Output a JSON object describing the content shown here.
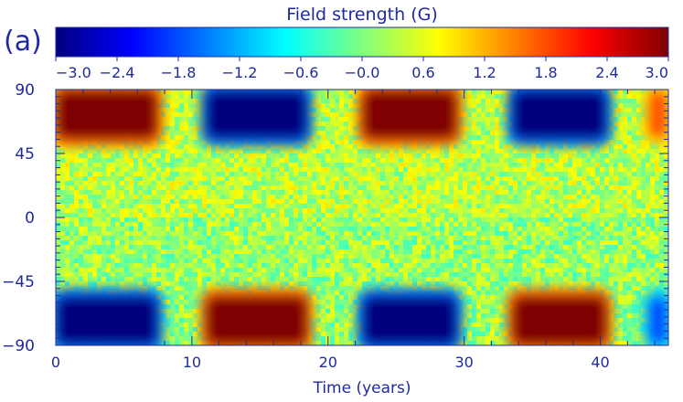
{
  "panel_label": "(a)",
  "colorbar": {
    "title": "Field strength (G)",
    "min": -3.0,
    "max": 3.0,
    "ticks": [
      -3.0,
      -2.4,
      -1.8,
      -1.2,
      -0.6,
      0.0,
      0.6,
      1.2,
      1.8,
      2.4,
      3.0
    ],
    "tick_labels": [
      "−3.0",
      "−2.4",
      "−1.8",
      "−1.2",
      "−0.6",
      "−0.0",
      "0.6",
      "1.2",
      "1.8",
      "2.4",
      "3.0"
    ],
    "colormap": [
      "#00007f",
      "#0000ff",
      "#007fff",
      "#00ffff",
      "#7fff7f",
      "#ffff00",
      "#ff7f00",
      "#ff0000",
      "#7f0000"
    ]
  },
  "chart_data": {
    "type": "heatmap",
    "title": "",
    "xlabel": "Time (years)",
    "ylabel": "",
    "xlim": [
      0,
      45
    ],
    "ylim": [
      -90,
      90
    ],
    "x_ticks": [
      0,
      10,
      20,
      30,
      40
    ],
    "x_tick_labels": [
      "0",
      "10",
      "20",
      "30",
      "40"
    ],
    "y_ticks": [
      90,
      45,
      0,
      -45,
      -90
    ],
    "y_tick_labels": [
      "90",
      "45",
      "0",
      "−45",
      "−90"
    ],
    "value_range": [
      -3.0,
      3.0
    ],
    "grid": false,
    "polar_field_blocks": [
      {
        "hemisphere": "north",
        "t_start": 0,
        "t_end": 7.5,
        "lat_from": 55,
        "lat_to": 90,
        "value": 3.0
      },
      {
        "hemisphere": "south",
        "t_start": 0,
        "t_end": 7.5,
        "lat_from": -90,
        "lat_to": -55,
        "value": -3.0
      },
      {
        "hemisphere": "north",
        "t_start": 11,
        "t_end": 18.5,
        "lat_from": 55,
        "lat_to": 90,
        "value": -3.0
      },
      {
        "hemisphere": "south",
        "t_start": 11,
        "t_end": 18.5,
        "lat_from": -90,
        "lat_to": -55,
        "value": 3.0
      },
      {
        "hemisphere": "north",
        "t_start": 22.5,
        "t_end": 29.5,
        "lat_from": 55,
        "lat_to": 90,
        "value": 3.0
      },
      {
        "hemisphere": "south",
        "t_start": 22.5,
        "t_end": 29.5,
        "lat_from": -90,
        "lat_to": -55,
        "value": -3.0
      },
      {
        "hemisphere": "north",
        "t_start": 33.5,
        "t_end": 40.5,
        "lat_from": 55,
        "lat_to": 90,
        "value": -3.0
      },
      {
        "hemisphere": "south",
        "t_start": 33.5,
        "t_end": 40.5,
        "lat_from": -90,
        "lat_to": -55,
        "value": 3.0
      },
      {
        "hemisphere": "north",
        "t_start": 43.5,
        "t_end": 45,
        "lat_from": 55,
        "lat_to": 90,
        "value": 1.8
      },
      {
        "hemisphere": "south",
        "t_start": 43.5,
        "t_end": 45,
        "lat_from": -90,
        "lat_to": -55,
        "value": -1.8
      }
    ]
  }
}
